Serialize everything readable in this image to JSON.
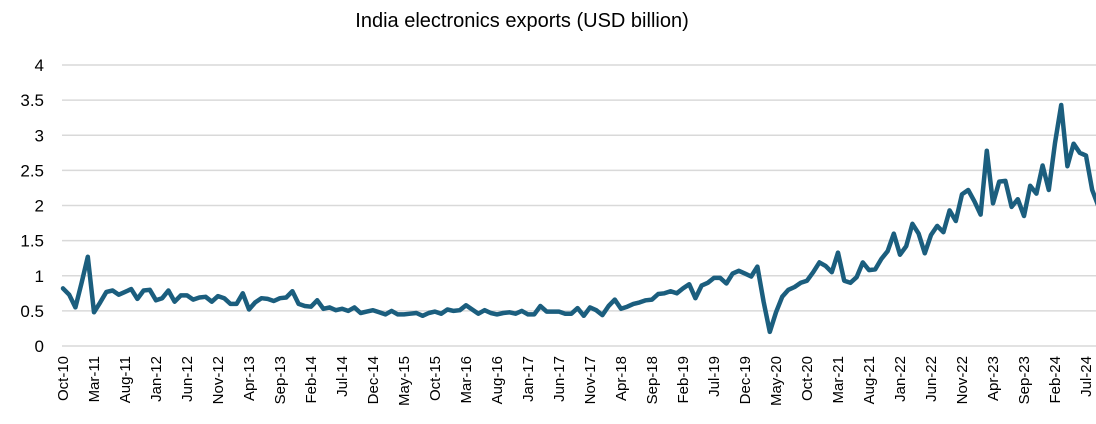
{
  "chart_data": {
    "type": "line",
    "title": "India electronics exports (USD billion)",
    "xlabel": "",
    "ylabel": "",
    "ylim": [
      0,
      4
    ],
    "yticks": [
      "0",
      "0.5",
      "1",
      "1.5",
      "2",
      "2.5",
      "3",
      "3.5",
      "4"
    ],
    "grid": true,
    "legend": "none",
    "x_tick_labels": [
      "Oct-10",
      "Mar-11",
      "Aug-11",
      "Jan-12",
      "Jun-12",
      "Nov-12",
      "Apr-13",
      "Sep-13",
      "Feb-14",
      "Jul-14",
      "Dec-14",
      "May-15",
      "Oct-15",
      "Mar-16",
      "Aug-16",
      "Jan-17",
      "Jun-17",
      "Nov-17",
      "Apr-18",
      "Sep-18",
      "Feb-19",
      "Jul-19",
      "Dec-19",
      "May-20",
      "Oct-20",
      "Mar-21",
      "Aug-21",
      "Jan-22",
      "Jun-22",
      "Nov-22",
      "Apr-23",
      "Sep-23",
      "Feb-24",
      "Jul-24"
    ],
    "series": [
      {
        "name": "India electronics exports",
        "color": "#1b5e7e",
        "start": "Oct-10",
        "frequency": "monthly",
        "values": [
          0.82,
          0.73,
          0.55,
          0.9,
          1.27,
          0.48,
          0.62,
          0.77,
          0.79,
          0.73,
          0.77,
          0.81,
          0.67,
          0.79,
          0.8,
          0.65,
          0.68,
          0.79,
          0.63,
          0.72,
          0.72,
          0.66,
          0.69,
          0.7,
          0.63,
          0.71,
          0.68,
          0.6,
          0.6,
          0.75,
          0.52,
          0.62,
          0.68,
          0.67,
          0.64,
          0.68,
          0.69,
          0.78,
          0.6,
          0.57,
          0.56,
          0.65,
          0.53,
          0.55,
          0.51,
          0.53,
          0.5,
          0.55,
          0.47,
          0.49,
          0.51,
          0.48,
          0.45,
          0.5,
          0.45,
          0.45,
          0.46,
          0.47,
          0.43,
          0.47,
          0.49,
          0.46,
          0.52,
          0.5,
          0.51,
          0.58,
          0.52,
          0.46,
          0.51,
          0.47,
          0.45,
          0.47,
          0.48,
          0.46,
          0.5,
          0.45,
          0.45,
          0.57,
          0.49,
          0.49,
          0.49,
          0.46,
          0.46,
          0.54,
          0.43,
          0.55,
          0.51,
          0.44,
          0.57,
          0.66,
          0.53,
          0.56,
          0.6,
          0.62,
          0.65,
          0.66,
          0.74,
          0.75,
          0.78,
          0.75,
          0.82,
          0.88,
          0.68,
          0.86,
          0.9,
          0.97,
          0.97,
          0.89,
          1.03,
          1.07,
          1.03,
          0.99,
          1.13,
          0.63,
          0.2,
          0.48,
          0.7,
          0.8,
          0.84,
          0.9,
          0.93,
          1.05,
          1.19,
          1.14,
          1.05,
          1.33,
          0.93,
          0.9,
          0.98,
          1.19,
          1.08,
          1.09,
          1.24,
          1.35,
          1.6,
          1.3,
          1.42,
          1.74,
          1.6,
          1.32,
          1.58,
          1.71,
          1.62,
          1.93,
          1.78,
          2.16,
          2.22,
          2.06,
          1.87,
          2.78,
          2.03,
          2.34,
          2.35,
          1.98,
          2.09,
          1.85,
          2.28,
          2.17,
          2.57,
          2.22,
          2.89,
          3.43,
          2.56,
          2.88,
          2.75,
          2.71,
          2.22,
          1.99
        ]
      }
    ]
  }
}
